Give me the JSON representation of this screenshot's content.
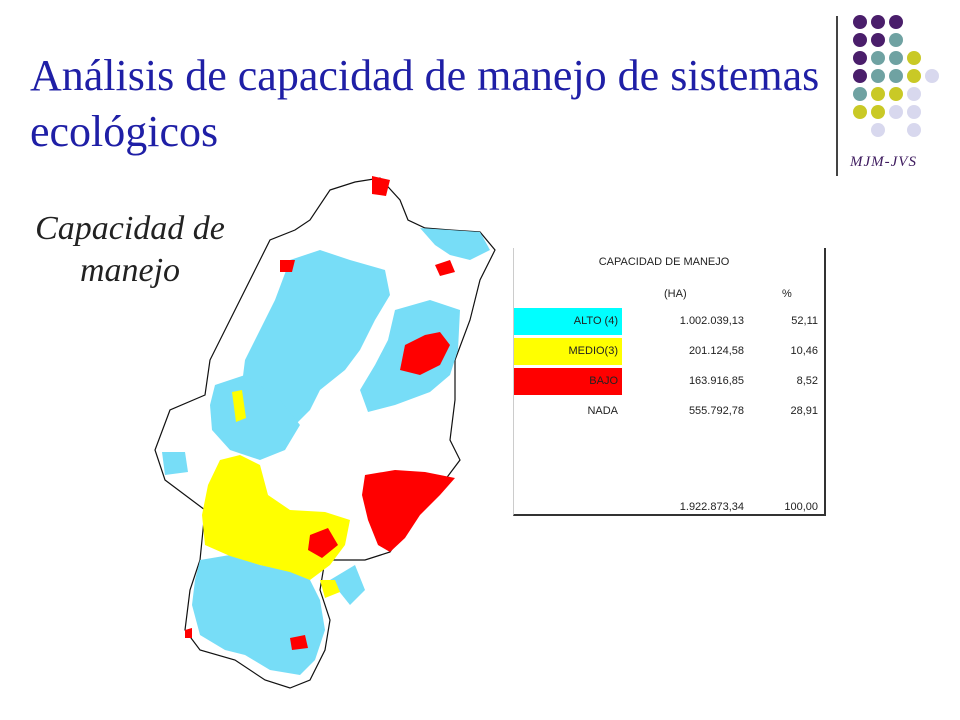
{
  "slide": {
    "title": "Análisis de capacidad de manejo de sistemas ecológicos",
    "subtitle": "Capacidad de manejo",
    "credit": "MJM-JVS"
  },
  "legend": {
    "title": "CAPACIDAD  DE MANEJO",
    "col_ha": "(HA)",
    "col_pct": "%",
    "rows": [
      {
        "label": "ALTO (4)",
        "ha": "1.002.039,13",
        "pct": "52,11",
        "color": "#00ffff"
      },
      {
        "label": "MEDIO(3)",
        "ha": "201.124,58",
        "pct": "10,46",
        "color": "#ffff00"
      },
      {
        "label": "BAJO",
        "ha": "163.916,85",
        "pct": "8,52",
        "color": "#ff0000"
      },
      {
        "label": "NADA",
        "ha": "555.792,78",
        "pct": "28,91",
        "color": "#ffffff"
      }
    ],
    "total_ha": "1.922.873,34",
    "total_pct": "100,00"
  },
  "map_colors": {
    "alto": "#77ddf7",
    "medio": "#ffff00",
    "bajo": "#ff0000",
    "nada": "#ffffff",
    "outline": "#111111"
  },
  "decor": {
    "dot_colors": [
      "#4a1e6b",
      "#6fa2a2",
      "#c9c926",
      "#d8d8ee"
    ]
  }
}
